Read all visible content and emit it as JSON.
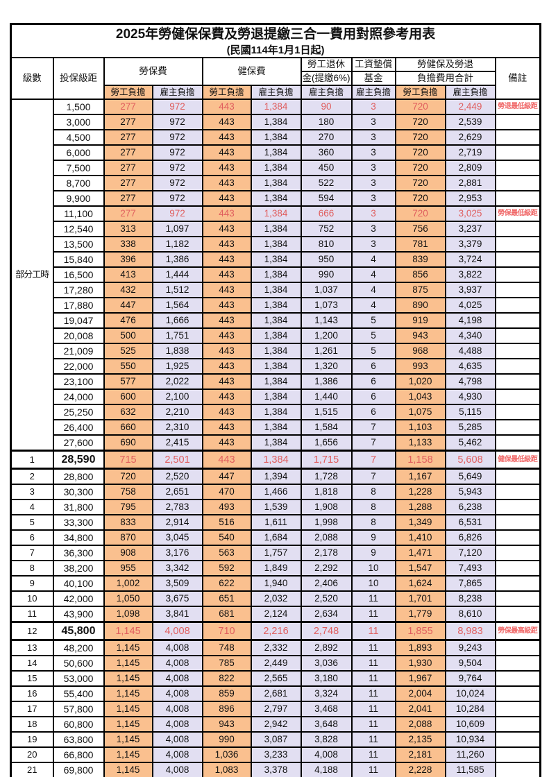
{
  "title": "2025年勞健保保費及勞退提繳三合一費用對照參考用表",
  "subtitle": "(民國114年1月1日起)",
  "colors": {
    "employee_burden_bg": "#FAC08F",
    "employer_burden_bg": "#E2DFF2",
    "highlight_value_text": "#E05E5E",
    "remark_text": "#F06868",
    "border": "#000000"
  },
  "header": {
    "level": "級數",
    "bracket": "投保級距",
    "labor_group": "勞保費",
    "health_group": "健保費",
    "pension_line1": "勞工退休",
    "pension_line2": "金(提繳6%)",
    "wage_fund_line1": "工資墊償",
    "wage_fund_line2": "基金",
    "total_line1": "勞健保及勞退",
    "total_line2": "負擔費用合計",
    "employee_burden": "勞工負擔",
    "employer_burden": "雇主負擔",
    "remark": "備註"
  },
  "table": {
    "part_time_label": "部分工時",
    "part_time_row_count": 23,
    "value_columns": [
      "勞保費勞工負擔",
      "勞保費雇主負擔",
      "健保費勞工負擔",
      "健保費雇主負擔",
      "勞工退休金雇主負擔",
      "工資墊償基金雇主負擔",
      "合計勞工負擔",
      "合計雇主負擔"
    ],
    "rows": [
      {
        "level": "",
        "bracket": "1,500",
        "values": [
          "277",
          "972",
          "443",
          "1,384",
          "90",
          "3",
          "720",
          "2,449"
        ],
        "remark": "勞退最低級距",
        "red": true,
        "emph": false
      },
      {
        "level": "",
        "bracket": "3,000",
        "values": [
          "277",
          "972",
          "443",
          "1,384",
          "180",
          "3",
          "720",
          "2,539"
        ],
        "remark": "",
        "red": false,
        "emph": false
      },
      {
        "level": "",
        "bracket": "4,500",
        "values": [
          "277",
          "972",
          "443",
          "1,384",
          "270",
          "3",
          "720",
          "2,629"
        ],
        "remark": "",
        "red": false,
        "emph": false
      },
      {
        "level": "",
        "bracket": "6,000",
        "values": [
          "277",
          "972",
          "443",
          "1,384",
          "360",
          "3",
          "720",
          "2,719"
        ],
        "remark": "",
        "red": false,
        "emph": false
      },
      {
        "level": "",
        "bracket": "7,500",
        "values": [
          "277",
          "972",
          "443",
          "1,384",
          "450",
          "3",
          "720",
          "2,809"
        ],
        "remark": "",
        "red": false,
        "emph": false
      },
      {
        "level": "",
        "bracket": "8,700",
        "values": [
          "277",
          "972",
          "443",
          "1,384",
          "522",
          "3",
          "720",
          "2,881"
        ],
        "remark": "",
        "red": false,
        "emph": false
      },
      {
        "level": "",
        "bracket": "9,900",
        "values": [
          "277",
          "972",
          "443",
          "1,384",
          "594",
          "3",
          "720",
          "2,953"
        ],
        "remark": "",
        "red": false,
        "emph": false
      },
      {
        "level": "",
        "bracket": "11,100",
        "values": [
          "277",
          "972",
          "443",
          "1,384",
          "666",
          "3",
          "720",
          "3,025"
        ],
        "remark": "勞保最低級距",
        "red": true,
        "emph": false
      },
      {
        "level": "",
        "bracket": "12,540",
        "values": [
          "313",
          "1,097",
          "443",
          "1,384",
          "752",
          "3",
          "756",
          "3,237"
        ],
        "remark": "",
        "red": false,
        "emph": false
      },
      {
        "level": "",
        "bracket": "13,500",
        "values": [
          "338",
          "1,182",
          "443",
          "1,384",
          "810",
          "3",
          "781",
          "3,379"
        ],
        "remark": "",
        "red": false,
        "emph": false
      },
      {
        "level": "",
        "bracket": "15,840",
        "values": [
          "396",
          "1,386",
          "443",
          "1,384",
          "950",
          "4",
          "839",
          "3,724"
        ],
        "remark": "",
        "red": false,
        "emph": false
      },
      {
        "level": "",
        "bracket": "16,500",
        "values": [
          "413",
          "1,444",
          "443",
          "1,384",
          "990",
          "4",
          "856",
          "3,822"
        ],
        "remark": "",
        "red": false,
        "emph": false
      },
      {
        "level": "",
        "bracket": "17,280",
        "values": [
          "432",
          "1,512",
          "443",
          "1,384",
          "1,037",
          "4",
          "875",
          "3,937"
        ],
        "remark": "",
        "red": false,
        "emph": false
      },
      {
        "level": "",
        "bracket": "17,880",
        "values": [
          "447",
          "1,564",
          "443",
          "1,384",
          "1,073",
          "4",
          "890",
          "4,025"
        ],
        "remark": "",
        "red": false,
        "emph": false
      },
      {
        "level": "",
        "bracket": "19,047",
        "values": [
          "476",
          "1,666",
          "443",
          "1,384",
          "1,143",
          "5",
          "919",
          "4,198"
        ],
        "remark": "",
        "red": false,
        "emph": false
      },
      {
        "level": "",
        "bracket": "20,008",
        "values": [
          "500",
          "1,751",
          "443",
          "1,384",
          "1,200",
          "5",
          "943",
          "4,340"
        ],
        "remark": "",
        "red": false,
        "emph": false
      },
      {
        "level": "",
        "bracket": "21,009",
        "values": [
          "525",
          "1,838",
          "443",
          "1,384",
          "1,261",
          "5",
          "968",
          "4,488"
        ],
        "remark": "",
        "red": false,
        "emph": false
      },
      {
        "level": "",
        "bracket": "22,000",
        "values": [
          "550",
          "1,925",
          "443",
          "1,384",
          "1,320",
          "6",
          "993",
          "4,635"
        ],
        "remark": "",
        "red": false,
        "emph": false
      },
      {
        "level": "",
        "bracket": "23,100",
        "values": [
          "577",
          "2,022",
          "443",
          "1,384",
          "1,386",
          "6",
          "1,020",
          "4,798"
        ],
        "remark": "",
        "red": false,
        "emph": false
      },
      {
        "level": "",
        "bracket": "24,000",
        "values": [
          "600",
          "2,100",
          "443",
          "1,384",
          "1,440",
          "6",
          "1,043",
          "4,930"
        ],
        "remark": "",
        "red": false,
        "emph": false
      },
      {
        "level": "",
        "bracket": "25,250",
        "values": [
          "632",
          "2,210",
          "443",
          "1,384",
          "1,515",
          "6",
          "1,075",
          "5,115"
        ],
        "remark": "",
        "red": false,
        "emph": false
      },
      {
        "level": "",
        "bracket": "26,400",
        "values": [
          "660",
          "2,310",
          "443",
          "1,384",
          "1,584",
          "7",
          "1,103",
          "5,285"
        ],
        "remark": "",
        "red": false,
        "emph": false
      },
      {
        "level": "",
        "bracket": "27,600",
        "values": [
          "690",
          "2,415",
          "443",
          "1,384",
          "1,656",
          "7",
          "1,133",
          "5,462"
        ],
        "remark": "",
        "red": false,
        "emph": false
      },
      {
        "level": "1",
        "bracket": "28,590",
        "values": [
          "715",
          "2,501",
          "443",
          "1,384",
          "1,715",
          "7",
          "1,158",
          "5,608"
        ],
        "remark": "健保最低級距",
        "red": true,
        "emph": true
      },
      {
        "level": "2",
        "bracket": "28,800",
        "values": [
          "720",
          "2,520",
          "447",
          "1,394",
          "1,728",
          "7",
          "1,167",
          "5,649"
        ],
        "remark": "",
        "red": false,
        "emph": false
      },
      {
        "level": "3",
        "bracket": "30,300",
        "values": [
          "758",
          "2,651",
          "470",
          "1,466",
          "1,818",
          "8",
          "1,228",
          "5,943"
        ],
        "remark": "",
        "red": false,
        "emph": false
      },
      {
        "level": "4",
        "bracket": "31,800",
        "values": [
          "795",
          "2,783",
          "493",
          "1,539",
          "1,908",
          "8",
          "1,288",
          "6,238"
        ],
        "remark": "",
        "red": false,
        "emph": false
      },
      {
        "level": "5",
        "bracket": "33,300",
        "values": [
          "833",
          "2,914",
          "516",
          "1,611",
          "1,998",
          "8",
          "1,349",
          "6,531"
        ],
        "remark": "",
        "red": false,
        "emph": false
      },
      {
        "level": "6",
        "bracket": "34,800",
        "values": [
          "870",
          "3,045",
          "540",
          "1,684",
          "2,088",
          "9",
          "1,410",
          "6,826"
        ],
        "remark": "",
        "red": false,
        "emph": false
      },
      {
        "level": "7",
        "bracket": "36,300",
        "values": [
          "908",
          "3,176",
          "563",
          "1,757",
          "2,178",
          "9",
          "1,471",
          "7,120"
        ],
        "remark": "",
        "red": false,
        "emph": false
      },
      {
        "level": "8",
        "bracket": "38,200",
        "values": [
          "955",
          "3,342",
          "592",
          "1,849",
          "2,292",
          "10",
          "1,547",
          "7,493"
        ],
        "remark": "",
        "red": false,
        "emph": false
      },
      {
        "level": "9",
        "bracket": "40,100",
        "values": [
          "1,002",
          "3,509",
          "622",
          "1,940",
          "2,406",
          "10",
          "1,624",
          "7,865"
        ],
        "remark": "",
        "red": false,
        "emph": false
      },
      {
        "level": "10",
        "bracket": "42,000",
        "values": [
          "1,050",
          "3,675",
          "651",
          "2,032",
          "2,520",
          "11",
          "1,701",
          "8,238"
        ],
        "remark": "",
        "red": false,
        "emph": false
      },
      {
        "level": "11",
        "bracket": "43,900",
        "values": [
          "1,098",
          "3,841",
          "681",
          "2,124",
          "2,634",
          "11",
          "1,779",
          "8,610"
        ],
        "remark": "",
        "red": false,
        "emph": false
      },
      {
        "level": "12",
        "bracket": "45,800",
        "values": [
          "1,145",
          "4,008",
          "710",
          "2,216",
          "2,748",
          "11",
          "1,855",
          "8,983"
        ],
        "remark": "勞保最高級距",
        "red": true,
        "emph": true
      },
      {
        "level": "13",
        "bracket": "48,200",
        "values": [
          "1,145",
          "4,008",
          "748",
          "2,332",
          "2,892",
          "11",
          "1,893",
          "9,243"
        ],
        "remark": "",
        "red": false,
        "emph": false
      },
      {
        "level": "14",
        "bracket": "50,600",
        "values": [
          "1,145",
          "4,008",
          "785",
          "2,449",
          "3,036",
          "11",
          "1,930",
          "9,504"
        ],
        "remark": "",
        "red": false,
        "emph": false
      },
      {
        "level": "15",
        "bracket": "53,000",
        "values": [
          "1,145",
          "4,008",
          "822",
          "2,565",
          "3,180",
          "11",
          "1,967",
          "9,764"
        ],
        "remark": "",
        "red": false,
        "emph": false
      },
      {
        "level": "16",
        "bracket": "55,400",
        "values": [
          "1,145",
          "4,008",
          "859",
          "2,681",
          "3,324",
          "11",
          "2,004",
          "10,024"
        ],
        "remark": "",
        "red": false,
        "emph": false
      },
      {
        "level": "17",
        "bracket": "57,800",
        "values": [
          "1,145",
          "4,008",
          "896",
          "2,797",
          "3,468",
          "11",
          "2,041",
          "10,284"
        ],
        "remark": "",
        "red": false,
        "emph": false
      },
      {
        "level": "18",
        "bracket": "60,800",
        "values": [
          "1,145",
          "4,008",
          "943",
          "2,942",
          "3,648",
          "11",
          "2,088",
          "10,609"
        ],
        "remark": "",
        "red": false,
        "emph": false
      },
      {
        "level": "19",
        "bracket": "63,800",
        "values": [
          "1,145",
          "4,008",
          "990",
          "3,087",
          "3,828",
          "11",
          "2,135",
          "10,934"
        ],
        "remark": "",
        "red": false,
        "emph": false
      },
      {
        "level": "20",
        "bracket": "66,800",
        "values": [
          "1,145",
          "4,008",
          "1,036",
          "3,233",
          "4,008",
          "11",
          "2,181",
          "11,260"
        ],
        "remark": "",
        "red": false,
        "emph": false
      },
      {
        "level": "21",
        "bracket": "69,800",
        "values": [
          "1,145",
          "4,008",
          "1,083",
          "3,378",
          "4,188",
          "11",
          "2,228",
          "11,585"
        ],
        "remark": "",
        "red": false,
        "emph": false
      }
    ]
  }
}
